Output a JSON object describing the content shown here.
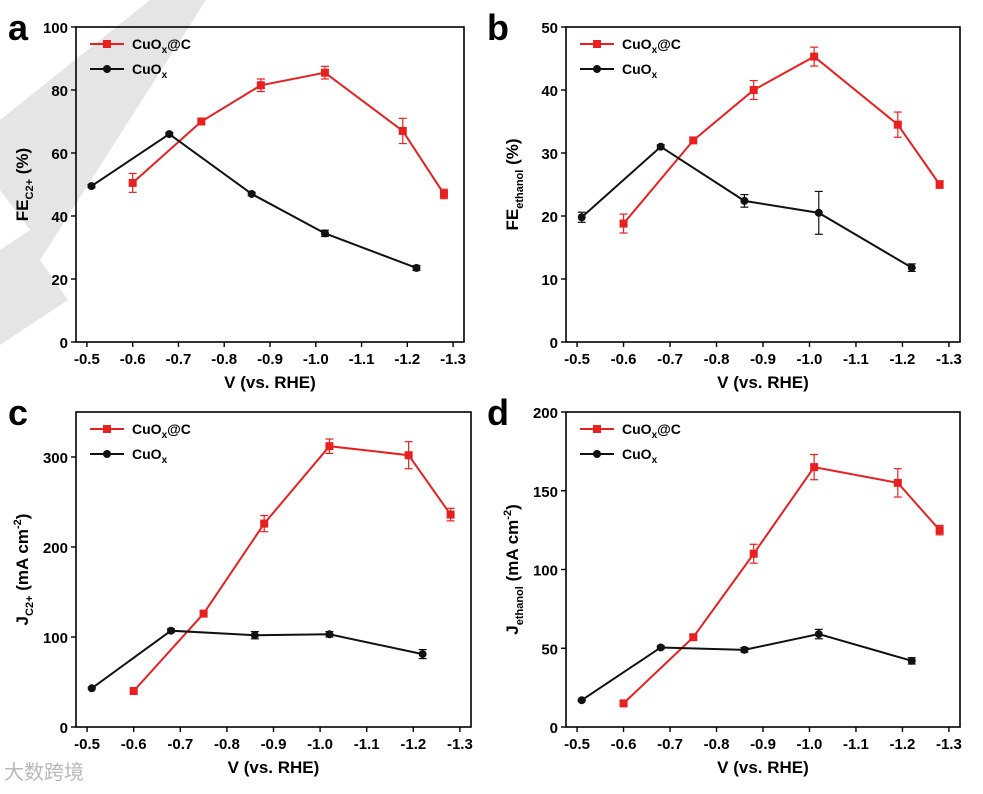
{
  "watermark": "大数跨境",
  "colors": {
    "series_red": "#e8201f",
    "series_black": "#111111"
  },
  "chart_data": [
    {
      "panel": "a",
      "type": "line",
      "xlabel": "V (vs. RHE)",
      "ylabel": "FEC2+ (%)",
      "ylabel_main": "FE",
      "ylabel_sub": "C2+",
      "ylabel_tail": " (%)",
      "x_ticks": [
        "-0.5",
        "-0.6",
        "-0.7",
        "-0.8",
        "-0.9",
        "-1.0",
        "-1.1",
        "-1.2",
        "-1.3"
      ],
      "xlim": [
        -0.5,
        -1.3
      ],
      "ylim": [
        0,
        100
      ],
      "y_ticks": [
        0,
        20,
        40,
        60,
        80,
        100
      ],
      "legend_position": "top-left",
      "series": [
        {
          "name": "CuOx@C",
          "name_main": "CuO",
          "name_sub": "x",
          "name_tail": "@C",
          "color": "#e8201f",
          "marker": "square",
          "x": [
            -0.6,
            -0.75,
            -0.88,
            -1.02,
            -1.19,
            -1.28
          ],
          "y": [
            50.5,
            70,
            81.5,
            85.5,
            67,
            47
          ],
          "err": [
            3,
            1,
            2,
            2,
            4,
            1.5
          ]
        },
        {
          "name": "CuOx",
          "name_main": "CuO",
          "name_sub": "x",
          "name_tail": "",
          "color": "#111111",
          "marker": "circle",
          "x": [
            -0.51,
            -0.68,
            -0.86,
            -1.02,
            -1.22
          ],
          "y": [
            49.5,
            66,
            47,
            34.5,
            23.5
          ],
          "err": [
            0.5,
            0.5,
            0.5,
            1,
            0.8
          ]
        }
      ]
    },
    {
      "panel": "b",
      "type": "line",
      "xlabel": "V (vs. RHE)",
      "ylabel": "FEethanol (%)",
      "ylabel_main": "FE",
      "ylabel_sub": "ethanol",
      "ylabel_tail": " (%)",
      "x_ticks": [
        "-0.5",
        "-0.6",
        "-0.7",
        "-0.8",
        "-0.9",
        "-1.0",
        "-1.1",
        "-1.2",
        "-1.3"
      ],
      "xlim": [
        -0.5,
        -1.3
      ],
      "ylim": [
        0,
        50
      ],
      "y_ticks": [
        0,
        10,
        20,
        30,
        40,
        50
      ],
      "legend_position": "top-left",
      "series": [
        {
          "name": "CuOx@C",
          "name_main": "CuO",
          "name_sub": "x",
          "name_tail": "@C",
          "color": "#e8201f",
          "marker": "square",
          "x": [
            -0.6,
            -0.75,
            -0.88,
            -1.01,
            -1.19,
            -1.28
          ],
          "y": [
            18.8,
            32,
            40,
            45.3,
            34.5,
            25
          ],
          "err": [
            1.5,
            0.3,
            1.5,
            1.5,
            2,
            0.6
          ]
        },
        {
          "name": "CuOx",
          "name_main": "CuO",
          "name_sub": "x",
          "name_tail": "",
          "color": "#111111",
          "marker": "circle",
          "x": [
            -0.51,
            -0.68,
            -0.86,
            -1.02,
            -1.22
          ],
          "y": [
            19.8,
            31,
            22.4,
            20.5,
            11.8
          ],
          "err": [
            0.8,
            0.3,
            1,
            3.4,
            0.6
          ]
        }
      ]
    },
    {
      "panel": "c",
      "type": "line",
      "xlabel": "V (vs. RHE)",
      "ylabel": "JC2+ (mA cm-2)",
      "ylabel_main": "J",
      "ylabel_sub": "C2+",
      "ylabel_tail": " (mA cm",
      "ylabel_sup": "-2",
      "ylabel_end": ")",
      "x_ticks": [
        "-0.5",
        "-0.6",
        "-0.7",
        "-0.8",
        "-0.9",
        "-1.0",
        "-1.1",
        "-1.2",
        "-1.3"
      ],
      "xlim": [
        -0.5,
        -1.3
      ],
      "ylim": [
        0,
        350
      ],
      "y_ticks": [
        0,
        100,
        200,
        300
      ],
      "legend_position": "top-left",
      "series": [
        {
          "name": "CuOx@C",
          "name_main": "CuO",
          "name_sub": "x",
          "name_tail": "@C",
          "color": "#e8201f",
          "marker": "square",
          "x": [
            -0.6,
            -0.75,
            -0.88,
            -1.02,
            -1.19,
            -1.28
          ],
          "y": [
            40,
            126,
            226,
            312,
            302,
            236
          ],
          "err": [
            2,
            3,
            9,
            8,
            15,
            7
          ]
        },
        {
          "name": "CuOx",
          "name_main": "CuO",
          "name_sub": "x",
          "name_tail": "",
          "color": "#111111",
          "marker": "circle",
          "x": [
            -0.51,
            -0.68,
            -0.86,
            -1.02,
            -1.22
          ],
          "y": [
            43,
            107,
            102,
            103,
            81
          ],
          "err": [
            1,
            2,
            4,
            3,
            5
          ]
        }
      ]
    },
    {
      "panel": "d",
      "type": "line",
      "xlabel": "V (vs. RHE)",
      "ylabel": "Jethanol (mA cm-2)",
      "ylabel_main": "J",
      "ylabel_sub": "ethanol",
      "ylabel_tail": " (mA cm",
      "ylabel_sup": "-2",
      "ylabel_end": ")",
      "x_ticks": [
        "-0.5",
        "-0.6",
        "-0.7",
        "-0.8",
        "-0.9",
        "-1.0",
        "-1.1",
        "-1.2",
        "-1.3"
      ],
      "xlim": [
        -0.5,
        -1.3
      ],
      "ylim": [
        0,
        200
      ],
      "y_ticks": [
        0,
        50,
        100,
        150,
        200
      ],
      "legend_position": "top-left",
      "series": [
        {
          "name": "CuOx@C",
          "name_main": "CuO",
          "name_sub": "x",
          "name_tail": "@C",
          "color": "#e8201f",
          "marker": "square",
          "x": [
            -0.6,
            -0.75,
            -0.88,
            -1.01,
            -1.19,
            -1.28
          ],
          "y": [
            15,
            57,
            110,
            165,
            155,
            125
          ],
          "err": [
            1,
            1.5,
            6,
            8,
            9,
            3
          ]
        },
        {
          "name": "CuOx",
          "name_main": "CuO",
          "name_sub": "x",
          "name_tail": "",
          "color": "#111111",
          "marker": "circle",
          "x": [
            -0.51,
            -0.68,
            -0.86,
            -1.02,
            -1.22
          ],
          "y": [
            17,
            50.5,
            49,
            59,
            42
          ],
          "err": [
            0.5,
            1,
            1.5,
            3,
            2
          ]
        }
      ]
    }
  ]
}
